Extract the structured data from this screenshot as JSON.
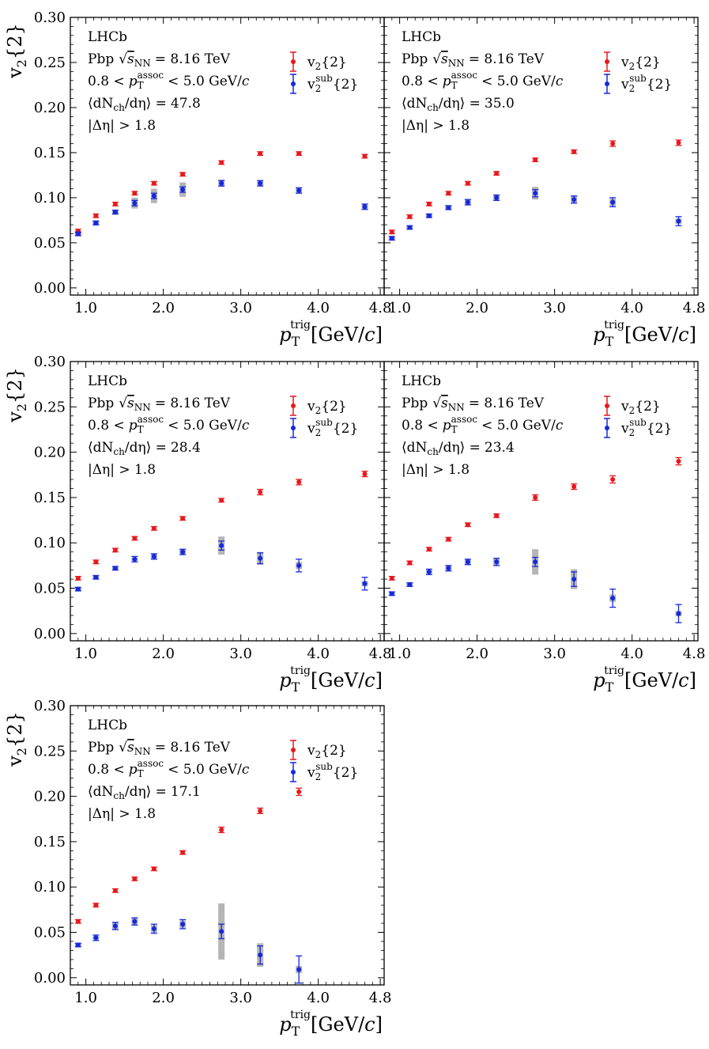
{
  "colors": {
    "v2": "#e8181b",
    "v2sub": "#1428e0",
    "syst": "#b5b5b5",
    "axis": "#000000"
  },
  "axes": {
    "ylabel": {
      "main": "v",
      "sub": "2",
      "rest": "{2}"
    },
    "xlabel": {
      "p": "p",
      "sup": "trig",
      "sub": "T",
      "unit": "[GeV/",
      "c": "c",
      "close": "]"
    },
    "xlim": [
      0.8,
      4.85
    ],
    "ylim": [
      -0.008,
      0.3
    ],
    "xticks": [
      1.0,
      2.0,
      3.0,
      4.0,
      4.8
    ],
    "xtick_labels": [
      "1.0",
      "2.0",
      "3.0",
      "4.0",
      "4.8"
    ],
    "yticks": [
      0.0,
      0.05,
      0.1,
      0.15,
      0.2,
      0.25,
      0.3
    ],
    "ytick_labels": [
      "0.00",
      "0.05",
      "0.10",
      "0.15",
      "0.20",
      "0.25",
      "0.30"
    ]
  },
  "annot": {
    "experiment": "LHCb",
    "collision": "Pbp",
    "energy_sym": "√",
    "energy_s": "s",
    "energy_sub": "NN",
    "energy_val": "= 8.16 TeV",
    "assoc_range_lo": "0.8 <",
    "assoc_p": "p",
    "assoc_sup": "assoc",
    "assoc_sub": "T",
    "assoc_range_hi": "< 5.0 GeV/",
    "assoc_c": "c",
    "mult_prefix": "⟨dN",
    "mult_sub": "ch",
    "mult_mid": "/dη⟩ =",
    "deta_cut": "|Δη| > 1.8"
  },
  "legend": {
    "v2": {
      "main": "v",
      "sub": "2",
      "rest": "{2}"
    },
    "v2sub": {
      "main": "v",
      "sup": "sub",
      "sub": "2",
      "rest": "{2}"
    }
  },
  "chart_data": [
    {
      "type": "scatter",
      "title": "",
      "multiplicity": "47.8",
      "x": [
        0.9,
        1.13,
        1.38,
        1.63,
        1.88,
        2.25,
        2.75,
        3.25,
        3.75,
        4.6
      ],
      "series": [
        {
          "name": "v2{2}",
          "values": [
            0.063,
            0.08,
            0.093,
            0.105,
            0.116,
            0.126,
            0.139,
            0.149,
            0.149,
            0.146
          ],
          "errors": [
            0.002,
            0.002,
            0.002,
            0.002,
            0.002,
            0.002,
            0.002,
            0.002,
            0.002,
            0.002
          ]
        },
        {
          "name": "v2sub{2}",
          "values": [
            0.06,
            0.072,
            0.084,
            0.094,
            0.102,
            0.109,
            0.116,
            0.116,
            0.108,
            0.09
          ],
          "errors": [
            0.002,
            0.002,
            0.002,
            0.003,
            0.003,
            0.003,
            0.003,
            0.003,
            0.003,
            0.003
          ],
          "syst": [
            0.003,
            0.003,
            0.003,
            0.006,
            0.008,
            0.008,
            0.004,
            0.003,
            0.003,
            0.003
          ]
        }
      ]
    },
    {
      "type": "scatter",
      "title": "",
      "multiplicity": "35.0",
      "x": [
        0.9,
        1.13,
        1.38,
        1.63,
        1.88,
        2.25,
        2.75,
        3.25,
        3.75,
        4.6
      ],
      "series": [
        {
          "name": "v2{2}",
          "values": [
            0.062,
            0.079,
            0.093,
            0.105,
            0.116,
            0.127,
            0.142,
            0.151,
            0.16,
            0.161
          ],
          "errors": [
            0.002,
            0.002,
            0.002,
            0.002,
            0.002,
            0.002,
            0.002,
            0.002,
            0.003,
            0.003
          ]
        },
        {
          "name": "v2sub{2}",
          "values": [
            0.055,
            0.067,
            0.08,
            0.089,
            0.095,
            0.1,
            0.105,
            0.098,
            0.095,
            0.074
          ],
          "errors": [
            0.002,
            0.002,
            0.002,
            0.002,
            0.003,
            0.003,
            0.004,
            0.004,
            0.005,
            0.005
          ],
          "syst": [
            0.002,
            0.002,
            0.002,
            0.003,
            0.003,
            0.003,
            0.007,
            0.004,
            0.004,
            0.003
          ]
        }
      ]
    },
    {
      "type": "scatter",
      "title": "",
      "multiplicity": "28.4",
      "x": [
        0.9,
        1.13,
        1.38,
        1.63,
        1.88,
        2.25,
        2.75,
        3.25,
        3.75,
        4.6
      ],
      "series": [
        {
          "name": "v2{2}",
          "values": [
            0.061,
            0.079,
            0.092,
            0.105,
            0.116,
            0.127,
            0.147,
            0.156,
            0.167,
            0.176
          ],
          "errors": [
            0.002,
            0.002,
            0.002,
            0.002,
            0.002,
            0.002,
            0.002,
            0.003,
            0.003,
            0.003
          ]
        },
        {
          "name": "v2sub{2}",
          "values": [
            0.049,
            0.062,
            0.072,
            0.082,
            0.085,
            0.09,
            0.097,
            0.083,
            0.075,
            0.055
          ],
          "errors": [
            0.002,
            0.002,
            0.002,
            0.003,
            0.003,
            0.003,
            0.005,
            0.006,
            0.007,
            0.007
          ],
          "syst": [
            0.002,
            0.002,
            0.002,
            0.002,
            0.003,
            0.003,
            0.01,
            0.007,
            0.004,
            0.003
          ]
        }
      ]
    },
    {
      "type": "scatter",
      "title": "",
      "multiplicity": "23.4",
      "x": [
        0.9,
        1.13,
        1.38,
        1.63,
        1.88,
        2.25,
        2.75,
        3.25,
        3.75,
        4.6
      ],
      "series": [
        {
          "name": "v2{2}",
          "values": [
            0.061,
            0.078,
            0.093,
            0.104,
            0.12,
            0.13,
            0.15,
            0.162,
            0.17,
            0.19
          ],
          "errors": [
            0.002,
            0.002,
            0.002,
            0.002,
            0.002,
            0.002,
            0.003,
            0.003,
            0.004,
            0.004
          ]
        },
        {
          "name": "v2sub{2}",
          "values": [
            0.044,
            0.054,
            0.068,
            0.072,
            0.079,
            0.079,
            0.079,
            0.06,
            0.039,
            0.022
          ],
          "errors": [
            0.002,
            0.002,
            0.003,
            0.003,
            0.003,
            0.004,
            0.005,
            0.008,
            0.01,
            0.01
          ],
          "syst": [
            0.002,
            0.002,
            0.002,
            0.003,
            0.003,
            0.004,
            0.014,
            0.011,
            0.004,
            0.003
          ]
        }
      ]
    },
    {
      "type": "scatter",
      "title": "",
      "multiplicity": "17.1",
      "x": [
        0.9,
        1.13,
        1.38,
        1.63,
        1.88,
        2.25,
        2.75,
        3.25,
        3.75
      ],
      "series": [
        {
          "name": "v2{2}",
          "values": [
            0.062,
            0.08,
            0.096,
            0.109,
            0.12,
            0.138,
            0.163,
            0.184,
            0.205
          ],
          "errors": [
            0.002,
            0.002,
            0.002,
            0.002,
            0.002,
            0.002,
            0.003,
            0.003,
            0.004
          ]
        },
        {
          "name": "v2sub{2}",
          "values": [
            0.036,
            0.044,
            0.057,
            0.062,
            0.054,
            0.059,
            0.051,
            0.025,
            0.009
          ],
          "errors": [
            0.002,
            0.003,
            0.004,
            0.004,
            0.005,
            0.005,
            0.008,
            0.01,
            0.015
          ],
          "syst": [
            0.002,
            0.002,
            0.004,
            0.004,
            0.004,
            0.004,
            0.031,
            0.013,
            0.004
          ]
        }
      ]
    }
  ]
}
